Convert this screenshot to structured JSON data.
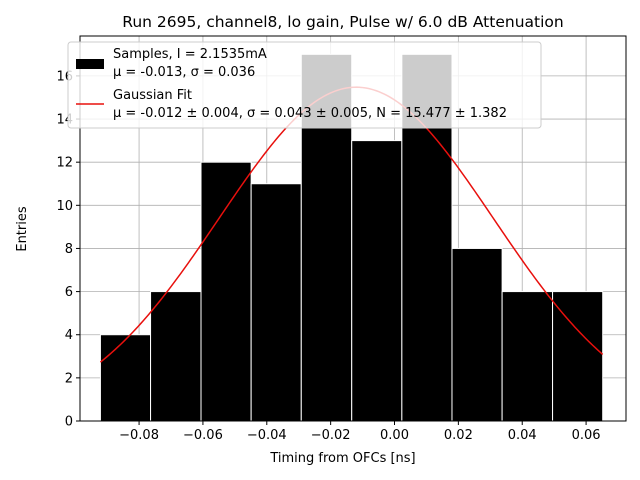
{
  "chart_data": {
    "type": "bar",
    "title": "Run 2695, channel8, lo gain, Pulse w/ 6.0 dB Attenuation",
    "xlabel": "Timing from OFCs [ns]",
    "ylabel": "Entries",
    "xlim": [
      -0.0985,
      0.0725
    ],
    "ylim": [
      0,
      17.85
    ],
    "xticks": [
      -0.08,
      -0.06,
      -0.04,
      -0.02,
      0.0,
      0.02,
      0.04,
      0.06
    ],
    "xtick_labels": [
      "−0.08",
      "−0.06",
      "−0.04",
      "−0.02",
      "0.00",
      "0.02",
      "0.04",
      "0.06"
    ],
    "yticks": [
      0,
      2,
      4,
      6,
      8,
      10,
      12,
      14,
      16
    ],
    "ytick_labels": [
      "0",
      "2",
      "4",
      "6",
      "8",
      "10",
      "12",
      "14",
      "16"
    ],
    "grid": true,
    "legend_position": "top-left",
    "histogram": {
      "name": "Samples, I = 2.1535mA",
      "stats_line": "μ = -0.013, σ = 0.036",
      "color": "#000000",
      "bin_edges": [
        -0.0921,
        -0.0764,
        -0.0606,
        -0.0449,
        -0.0292,
        -0.0134,
        0.0023,
        0.018,
        0.0337,
        0.0495,
        0.0652
      ],
      "counts": [
        4,
        6,
        12,
        11,
        17,
        13,
        17,
        8,
        6,
        6
      ]
    },
    "fit": {
      "name": "Gaussian Fit",
      "stats_line": "μ = -0.012 ± 0.004, σ = 0.043 ± 0.005, N = 15.477 ± 1.382",
      "color": "#e8100d",
      "mu": -0.012,
      "sigma": 0.043,
      "amplitude": 15.477,
      "x_range": [
        -0.0921,
        0.0652
      ]
    }
  }
}
